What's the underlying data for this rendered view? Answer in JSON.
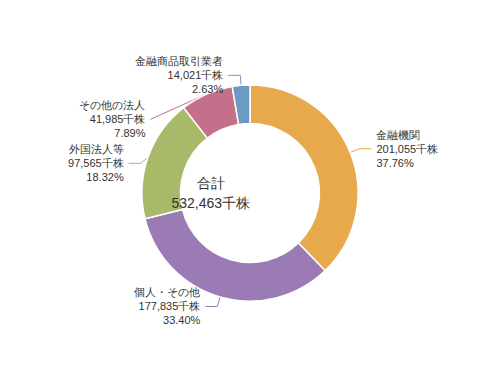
{
  "chart_data": {
    "type": "pie",
    "title": "合計\n532,463千株",
    "categories": [
      "金融機関",
      "個人・その他",
      "外国法人等",
      "その他の法人",
      "金融商品取引業者"
    ],
    "values": [
      37.76,
      33.4,
      18.32,
      7.89,
      2.63
    ],
    "value_labels": [
      "37.76%",
      "33.40%",
      "18.32%",
      "7.89%",
      "2.63%"
    ],
    "share_labels": [
      "201,055千株",
      "177,835千株",
      "97,565千株",
      "41,985千株",
      "14,021千株"
    ],
    "colors": [
      "#E8A84C",
      "#9B7BB5",
      "#A8BA6A",
      "#C4708A",
      "#6B9BC4"
    ],
    "data_labels": true,
    "legend": false
  }
}
